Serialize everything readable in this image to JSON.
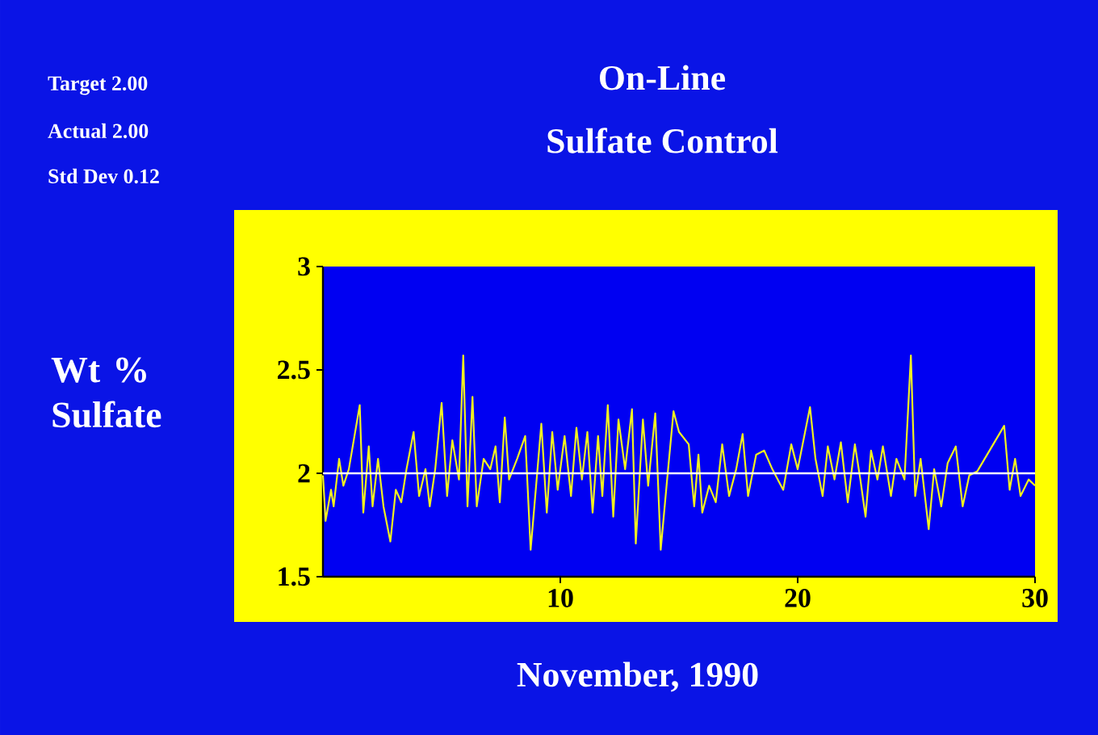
{
  "chart_data": {
    "type": "line",
    "title": "On-Line",
    "subtitle": "Sulfate Control",
    "xlabel": "November, 1990",
    "ylabel": "Wt % Sulfate",
    "annotations": [
      "Target 2.00",
      "Actual 2.00",
      "Std Dev 0.12"
    ],
    "x": [
      0.0,
      0.11,
      0.34,
      0.45,
      0.68,
      0.86,
      1.09,
      1.55,
      1.7,
      1.93,
      2.09,
      2.32,
      2.55,
      2.84,
      3.07,
      3.3,
      3.52,
      3.82,
      4.05,
      4.32,
      4.5,
      4.73,
      5.0,
      5.23,
      5.45,
      5.73,
      5.91,
      6.09,
      6.3,
      6.48,
      6.77,
      7.05,
      7.27,
      7.45,
      7.66,
      7.84,
      8.18,
      8.52,
      8.75,
      8.98,
      9.2,
      9.43,
      9.66,
      9.89,
      10.18,
      10.45,
      10.68,
      10.91,
      11.14,
      11.36,
      11.59,
      11.77,
      12.0,
      12.23,
      12.45,
      12.73,
      13.02,
      13.18,
      13.48,
      13.7,
      14.0,
      14.23,
      14.5,
      14.77,
      15.0,
      15.41,
      15.64,
      15.82,
      15.98,
      16.27,
      16.55,
      16.82,
      17.11,
      17.41,
      17.68,
      17.91,
      18.25,
      18.59,
      18.93,
      19.39,
      19.73,
      20.0,
      20.52,
      20.75,
      21.05,
      21.27,
      21.55,
      21.82,
      22.11,
      22.41,
      22.64,
      22.86,
      23.09,
      23.36,
      23.59,
      23.93,
      24.16,
      24.5,
      24.77,
      24.95,
      25.18,
      25.52,
      25.75,
      26.05,
      26.32,
      26.66,
      26.95,
      27.23,
      27.57,
      28.7,
      28.93,
      29.16,
      29.39,
      29.73,
      30.0
    ],
    "values": [
      1.99,
      1.77,
      1.92,
      1.84,
      2.07,
      1.94,
      2.02,
      2.33,
      1.81,
      2.13,
      1.84,
      2.07,
      1.84,
      1.67,
      1.92,
      1.86,
      2.02,
      2.2,
      1.89,
      2.02,
      1.84,
      2.02,
      2.34,
      1.89,
      2.16,
      1.97,
      2.57,
      1.84,
      2.37,
      1.84,
      2.07,
      2.02,
      2.13,
      1.86,
      2.27,
      1.97,
      2.07,
      2.18,
      1.63,
      1.94,
      2.24,
      1.81,
      2.2,
      1.92,
      2.18,
      1.89,
      2.22,
      1.97,
      2.2,
      1.81,
      2.18,
      1.89,
      2.33,
      1.79,
      2.26,
      2.02,
      2.31,
      1.66,
      2.26,
      1.94,
      2.29,
      1.63,
      1.97,
      2.3,
      2.2,
      2.14,
      1.84,
      2.09,
      1.81,
      1.94,
      1.86,
      2.14,
      1.89,
      2.02,
      2.19,
      1.89,
      2.09,
      2.11,
      2.02,
      1.92,
      2.14,
      2.02,
      2.32,
      2.07,
      1.89,
      2.13,
      1.97,
      2.15,
      1.86,
      2.14,
      1.97,
      1.79,
      2.11,
      1.97,
      2.13,
      1.89,
      2.07,
      1.97,
      2.57,
      1.89,
      2.07,
      1.73,
      2.02,
      1.84,
      2.05,
      2.13,
      1.84,
      1.99,
      2.01,
      2.23,
      1.92,
      2.07,
      1.89,
      1.97,
      1.94
    ],
    "color": "#f0f020",
    "xlim": [
      0,
      30
    ],
    "ylim": [
      1.5,
      3
    ],
    "xticks": [
      10,
      20,
      30
    ],
    "yticks": [
      1.5,
      2,
      2.5,
      3
    ],
    "ref_lines": [
      {
        "axis": "y",
        "value": 2,
        "color": "#ffffff"
      }
    ]
  }
}
